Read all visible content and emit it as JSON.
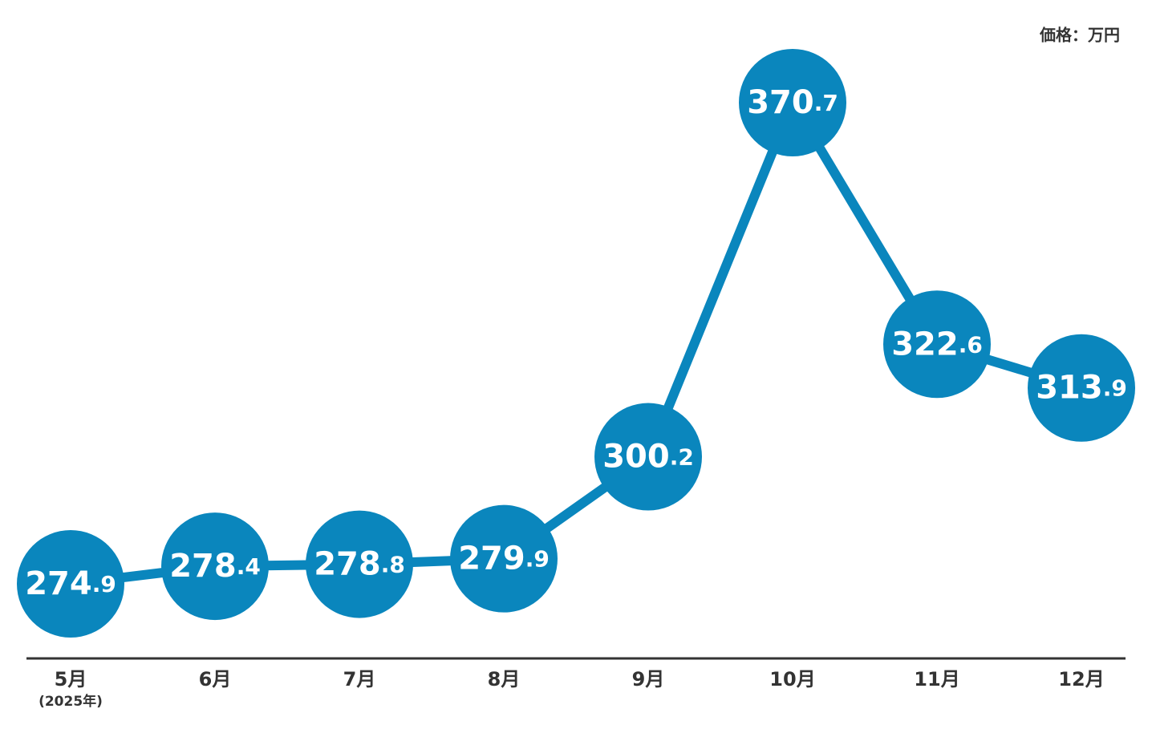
{
  "chart_data": {
    "type": "line",
    "unit_label": "価格：万円",
    "categories": [
      "5月",
      "6月",
      "7月",
      "8月",
      "9月",
      "10月",
      "11月",
      "12月"
    ],
    "first_category_note": "(2025年)",
    "series": [
      {
        "color": "#0a86bd",
        "values": [
          274.9,
          278.4,
          278.8,
          279.9,
          300.2,
          370.7,
          322.6,
          313.9
        ]
      }
    ]
  }
}
